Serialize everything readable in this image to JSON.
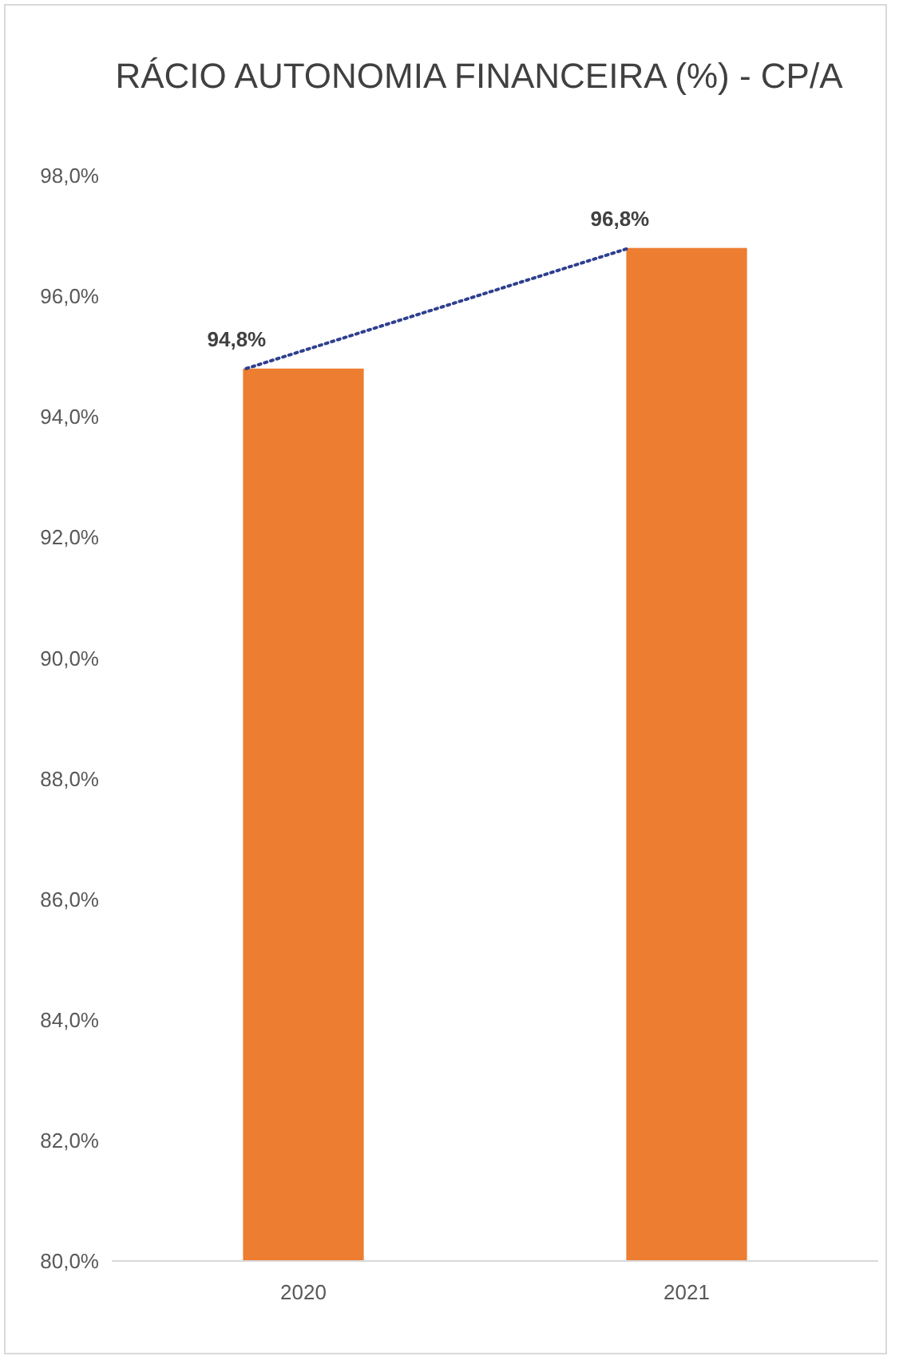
{
  "chart_data": {
    "type": "bar",
    "title": "RÁCIO AUTONOMIA FINANCEIRA (%) - CP/A",
    "categories": [
      "2020",
      "2021"
    ],
    "series": [
      {
        "color": "#ed7d31",
        "values": [
          94.8,
          96.8
        ],
        "value_labels": [
          "94,8%",
          "96,8%"
        ]
      },
      {
        "type": "line",
        "color": "#2e3f8f",
        "values": [
          94.8,
          96.8
        ],
        "line_style": "dotted",
        "marker": "none"
      }
    ],
    "ylim": [
      80,
      98
    ],
    "yticks": [
      {
        "value": 80,
        "label": "80,0%"
      },
      {
        "value": 82,
        "label": "82,0%"
      },
      {
        "value": 84,
        "label": "84,0%"
      },
      {
        "value": 86,
        "label": "86,0%"
      },
      {
        "value": 88,
        "label": "88,0%"
      },
      {
        "value": 90,
        "label": "90,0%"
      },
      {
        "value": 92,
        "label": "92,0%"
      },
      {
        "value": 94,
        "label": "94,0%"
      },
      {
        "value": 96,
        "label": "96,0%"
      },
      {
        "value": 98,
        "label": "98,0%"
      }
    ],
    "grid": false
  }
}
